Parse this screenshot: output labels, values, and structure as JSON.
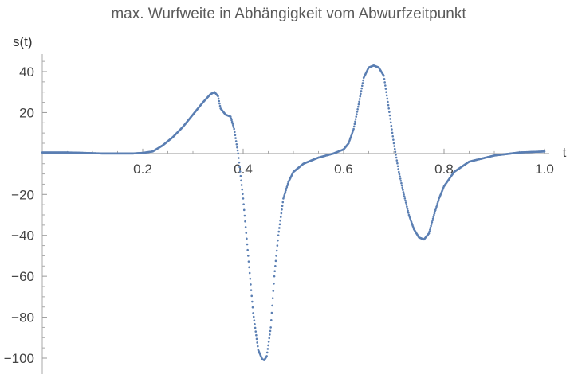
{
  "chart_data": {
    "type": "scatter",
    "title": "max. Wurfweite in Abhängigkeit vom Abwurfzeitpunkt",
    "xlabel": "t",
    "ylabel": "s(t)",
    "xlim": [
      0.0,
      1.0
    ],
    "ylim": [
      -105,
      50
    ],
    "x_ticks": [
      0.2,
      0.4,
      0.6,
      0.8,
      1.0
    ],
    "x_tick_labels": [
      "0.2",
      "0.4",
      "0.6",
      "0.8",
      "1.0"
    ],
    "y_ticks": [
      -100,
      -80,
      -60,
      -40,
      -20,
      20,
      40
    ],
    "y_tick_labels": [
      "−100",
      "−80",
      "−60",
      "−40",
      "−20",
      "20",
      "40"
    ],
    "grid": false,
    "legend": "none",
    "marker_color": "#5b7fb3",
    "series": [
      {
        "x": [
          0.0,
          0.05,
          0.08,
          0.12,
          0.18,
          0.2,
          0.22,
          0.24,
          0.26,
          0.28,
          0.3,
          0.32,
          0.335,
          0.343,
          0.35,
          0.355,
          0.365,
          0.375,
          0.382,
          0.39,
          0.4,
          0.41,
          0.42,
          0.43,
          0.438,
          0.442,
          0.447,
          0.455,
          0.462,
          0.47,
          0.48,
          0.49,
          0.5,
          0.52,
          0.55,
          0.58,
          0.6,
          0.61,
          0.62,
          0.63,
          0.64,
          0.65,
          0.66,
          0.67,
          0.68,
          0.69,
          0.7,
          0.71,
          0.72,
          0.73,
          0.74,
          0.75,
          0.76,
          0.77,
          0.78,
          0.79,
          0.8,
          0.82,
          0.85,
          0.9,
          0.95,
          1.0
        ],
        "y": [
          0.5,
          0.5,
          0.3,
          0.0,
          0.0,
          0.3,
          1.0,
          4.0,
          8.0,
          13.0,
          19.0,
          25.0,
          29.0,
          30.0,
          28.0,
          22.0,
          19.0,
          18.0,
          12.0,
          0.0,
          -22.0,
          -50.0,
          -78.0,
          -96.0,
          -100.5,
          -101.0,
          -99.0,
          -85.0,
          -60.0,
          -40.0,
          -22.0,
          -14.0,
          -9.0,
          -5.0,
          -2.0,
          0.0,
          2.0,
          5.0,
          12.0,
          24.0,
          37.0,
          42.0,
          43.0,
          42.0,
          38.0,
          22.0,
          5.0,
          -9.0,
          -20.0,
          -30.0,
          -37.0,
          -41.0,
          -42.0,
          -39.0,
          -30.0,
          -22.0,
          -16.0,
          -9.0,
          -4.0,
          -1.0,
          0.5,
          1.0
        ]
      }
    ]
  }
}
